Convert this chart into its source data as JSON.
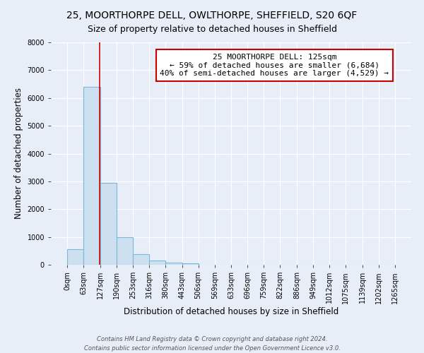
{
  "title": "25, MOORTHORPE DELL, OWLTHORPE, SHEFFIELD, S20 6QF",
  "subtitle": "Size of property relative to detached houses in Sheffield",
  "xlabel": "Distribution of detached houses by size in Sheffield",
  "ylabel": "Number of detached properties",
  "bin_edges": [
    0,
    63,
    127,
    190,
    253,
    316,
    380,
    443,
    506,
    569,
    633,
    696,
    759,
    822,
    886,
    949,
    1012,
    1075,
    1139,
    1202,
    1265
  ],
  "bar_heights": [
    550,
    6400,
    2950,
    1000,
    375,
    150,
    75,
    50,
    10,
    5,
    3,
    2,
    2,
    1,
    1,
    1,
    1,
    0,
    0,
    0
  ],
  "bar_color": "#cde0f0",
  "bar_edge_color": "#7ab8d9",
  "property_line_x": 125,
  "property_line_color": "#cc0000",
  "annotation_title": "25 MOORTHORPE DELL: 125sqm",
  "annotation_line1": "← 59% of detached houses are smaller (6,684)",
  "annotation_line2": "40% of semi-detached houses are larger (4,529) →",
  "annotation_box_color": "#ffffff",
  "annotation_box_edge": "#cc0000",
  "ylim": [
    0,
    8000
  ],
  "yticks": [
    0,
    1000,
    2000,
    3000,
    4000,
    5000,
    6000,
    7000,
    8000
  ],
  "xtick_labels": [
    "0sqm",
    "63sqm",
    "127sqm",
    "190sqm",
    "253sqm",
    "316sqm",
    "380sqm",
    "443sqm",
    "506sqm",
    "569sqm",
    "633sqm",
    "696sqm",
    "759sqm",
    "822sqm",
    "886sqm",
    "949sqm",
    "1012sqm",
    "1075sqm",
    "1139sqm",
    "1202sqm",
    "1265sqm"
  ],
  "footer_line1": "Contains HM Land Registry data © Crown copyright and database right 2024.",
  "footer_line2": "Contains public sector information licensed under the Open Government Licence v3.0.",
  "background_color": "#e8eef8",
  "grid_color": "#ffffff",
  "title_fontsize": 10,
  "subtitle_fontsize": 9,
  "axis_label_fontsize": 8.5,
  "tick_fontsize": 7,
  "annotation_fontsize": 8,
  "footer_fontsize": 6
}
